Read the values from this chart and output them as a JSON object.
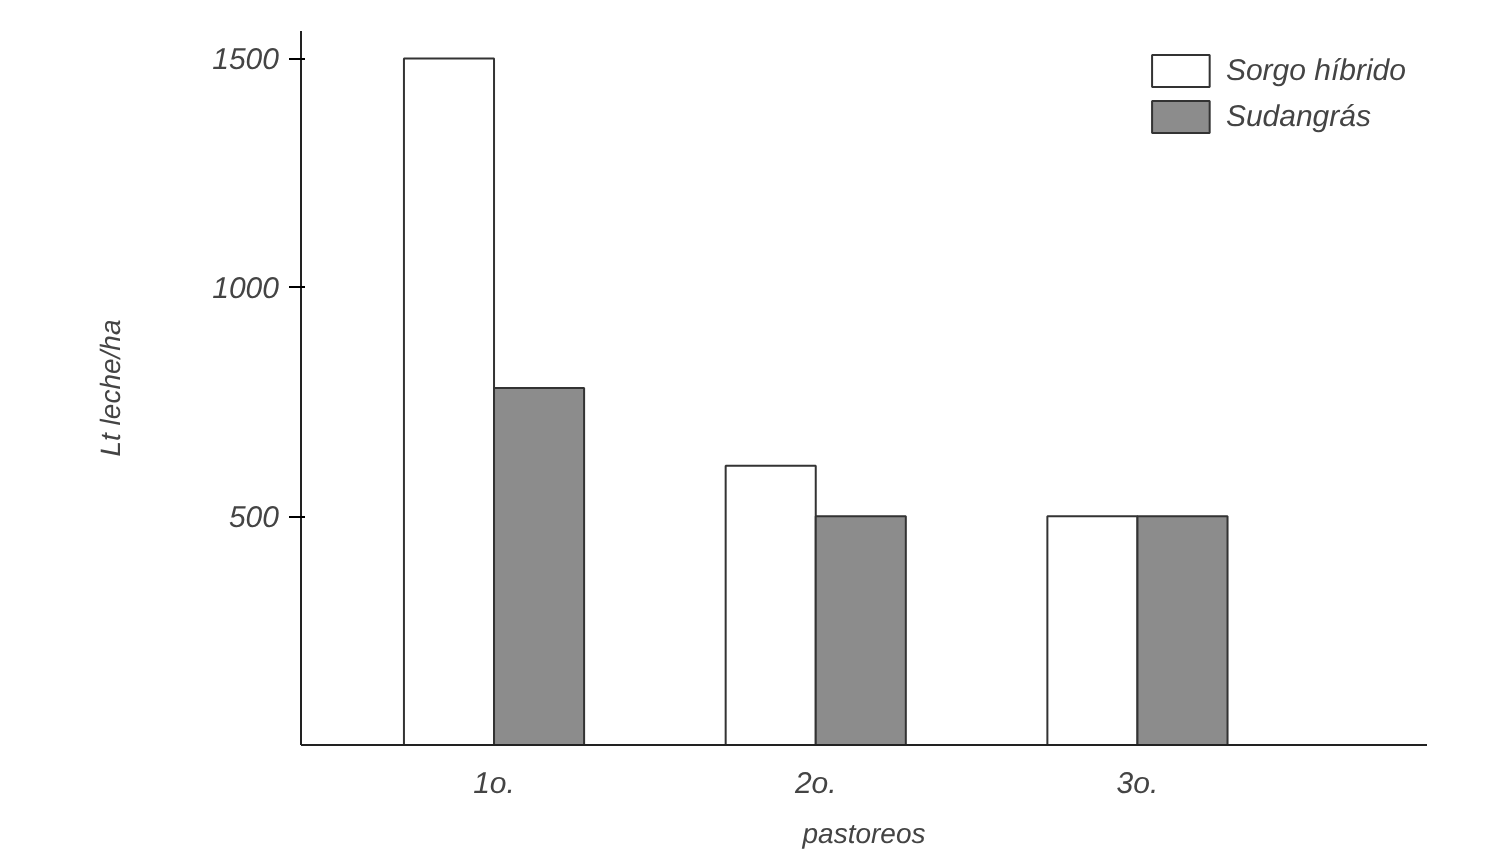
{
  "chart_data": {
    "type": "bar",
    "xlabel": "pastoreos",
    "ylabel": "Lt leche/ha",
    "categories": [
      "1o.",
      "2o.",
      "3o."
    ],
    "series": [
      {
        "name": "Sorgo híbrido",
        "color": "#ffffff",
        "values": [
          1500,
          610,
          500
        ]
      },
      {
        "name": "Sudangrás",
        "color": "#8c8c8c",
        "values": [
          780,
          500,
          500
        ]
      }
    ],
    "ylim": [
      0,
      1560
    ],
    "yticks": [
      500,
      1000,
      1500
    ],
    "grid": false,
    "legend": "top right"
  }
}
